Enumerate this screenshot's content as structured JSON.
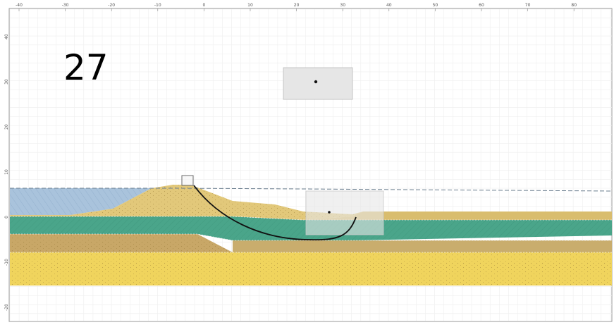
{
  "overlay_number": "27",
  "axes": {
    "x_ticks": [
      "-40",
      "-30",
      "-20",
      "-10",
      "0",
      "10",
      "20",
      "30",
      "40",
      "50",
      "60",
      "70",
      "80"
    ],
    "y_ticks": [
      "40",
      "30",
      "20",
      "10",
      "0",
      "-10",
      "-20"
    ]
  },
  "colors": {
    "water": "#a9c3dc",
    "dike_sand": "#e2c87a",
    "clay_green": "#4aa58a",
    "peat_brown": "#c8a767",
    "sand_yellow": "#f0d45d",
    "grid": "#dcdcdc",
    "box_fill": "#e6e6e6",
    "slip_line": "#111111"
  }
}
